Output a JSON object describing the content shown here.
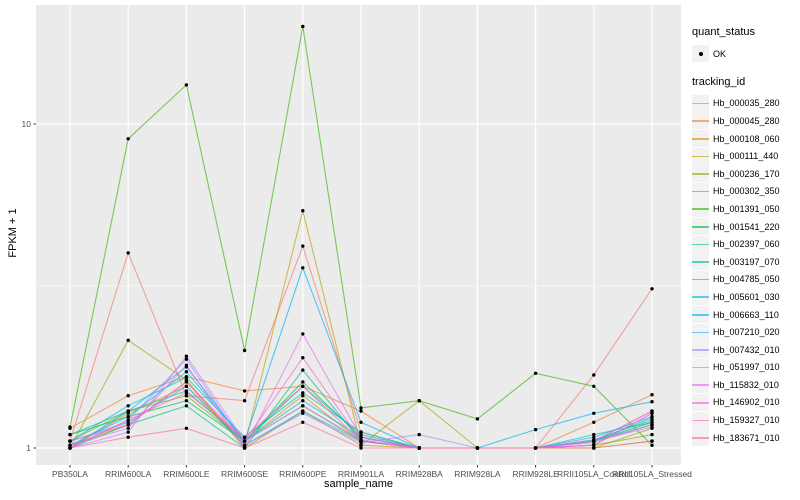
{
  "chart_data": {
    "type": "line",
    "title": "",
    "xlabel": "sample_name",
    "ylabel": "FPKM + 1",
    "yscale": "log10",
    "yticks": [
      "1",
      "10"
    ],
    "ytick_values": [
      1,
      10
    ],
    "yminor_values": [
      3.162
    ],
    "ylim": [
      0.97,
      23.3
    ],
    "grid": true,
    "legend_position": "right",
    "panel_background": "#EBEBEB",
    "gridline_color": "#FFFFFF",
    "point_color": "#000000",
    "categories": [
      "PB350LA",
      "RRIM600LA",
      "RRIM600LE",
      "RRIM600SE",
      "RRIM600PE",
      "RRIM901LA",
      "RRIM928BA",
      "RRIM928LA",
      "RRIM928LE",
      "RRII105LA_Control",
      "RRII105LA_Stressed"
    ],
    "series": [
      {
        "name": "Hb_000035_280",
        "color": "#F8766D",
        "values": [
          1.05,
          4.0,
          1.45,
          1.4,
          4.2,
          1.12,
          1.0,
          1.0,
          1.0,
          1.68,
          3.1
        ]
      },
      {
        "name": "Hb_000045_280",
        "color": "#EA8331",
        "values": [
          1.15,
          1.45,
          1.66,
          1.5,
          1.55,
          1.3,
          1.0,
          1.0,
          1.0,
          1.2,
          1.46
        ]
      },
      {
        "name": "Hb_000108_060",
        "color": "#D89000",
        "values": [
          1.0,
          1.28,
          1.55,
          1.05,
          1.45,
          1.05,
          1.0,
          1.0,
          1.0,
          1.05,
          1.3
        ]
      },
      {
        "name": "Hb_000111_440",
        "color": "#C09B00",
        "values": [
          1.02,
          1.18,
          1.6,
          1.02,
          5.4,
          1.02,
          1.0,
          1.0,
          1.0,
          1.0,
          1.15
        ]
      },
      {
        "name": "Hb_000236_170",
        "color": "#A3A500",
        "values": [
          1.0,
          2.15,
          1.62,
          1.0,
          1.3,
          1.02,
          1.4,
          1.0,
          1.0,
          1.0,
          1.05
        ]
      },
      {
        "name": "Hb_000302_350",
        "color": "#7CAE00",
        "values": [
          1.05,
          1.3,
          1.45,
          1.05,
          1.35,
          1.05,
          1.0,
          1.0,
          1.0,
          1.02,
          1.1
        ]
      },
      {
        "name": "Hb_001391_050",
        "color": "#39B600",
        "values": [
          1.16,
          9.0,
          13.2,
          2.0,
          20.0,
          1.33,
          1.4,
          1.23,
          1.7,
          1.55,
          1.02
        ]
      },
      {
        "name": "Hb_001541_220",
        "color": "#00BB4E",
        "values": [
          1.1,
          1.25,
          1.4,
          1.05,
          1.6,
          1.08,
          1.0,
          1.0,
          1.0,
          1.05,
          1.2
        ]
      },
      {
        "name": "Hb_002397_060",
        "color": "#00C087",
        "values": [
          1.0,
          1.18,
          1.35,
          1.0,
          1.74,
          1.05,
          1.0,
          1.0,
          1.0,
          1.06,
          1.22
        ]
      },
      {
        "name": "Hb_003197_070",
        "color": "#00C0A3",
        "values": [
          1.1,
          1.3,
          1.5,
          1.05,
          1.55,
          1.1,
          1.0,
          1.0,
          1.0,
          1.05,
          1.24
        ]
      },
      {
        "name": "Hb_004785_050",
        "color": "#00BFC4",
        "values": [
          1.05,
          1.35,
          1.65,
          1.08,
          1.48,
          1.12,
          1.0,
          1.0,
          1.0,
          1.1,
          1.2
        ]
      },
      {
        "name": "Hb_005601_030",
        "color": "#00BAE0",
        "values": [
          1.02,
          1.25,
          1.72,
          1.05,
          1.4,
          1.08,
          1.0,
          1.0,
          1.0,
          1.05,
          1.18
        ]
      },
      {
        "name": "Hb_006663_110",
        "color": "#00B0F6",
        "values": [
          1.0,
          1.3,
          1.78,
          1.05,
          3.6,
          1.2,
          1.0,
          1.0,
          1.14,
          1.28,
          1.39
        ]
      },
      {
        "name": "Hb_007210_020",
        "color": "#35A2FF",
        "values": [
          1.05,
          1.2,
          1.55,
          1.02,
          1.3,
          1.05,
          1.0,
          1.0,
          1.0,
          1.08,
          1.25
        ]
      },
      {
        "name": "Hb_007432_010",
        "color": "#9590FF",
        "values": [
          1.0,
          1.22,
          1.88,
          1.02,
          1.28,
          1.04,
          1.1,
          1.0,
          1.0,
          1.05,
          1.16
        ]
      },
      {
        "name": "Hb_051997_010",
        "color": "#C77CFF",
        "values": [
          1.0,
          1.12,
          1.92,
          1.05,
          1.35,
          1.06,
          1.0,
          1.0,
          1.0,
          1.02,
          1.28
        ]
      },
      {
        "name": "Hb_115832_010",
        "color": "#E76BF3",
        "values": [
          1.02,
          1.15,
          1.8,
          1.0,
          2.25,
          1.08,
          1.0,
          1.0,
          1.0,
          1.05,
          1.3
        ]
      },
      {
        "name": "Hb_146902_010",
        "color": "#FA62DB",
        "values": [
          1.05,
          1.18,
          1.6,
          1.05,
          1.9,
          1.05,
          1.0,
          1.0,
          1.0,
          1.02,
          1.28
        ]
      },
      {
        "name": "Hb_159327_010",
        "color": "#FF62BC",
        "values": [
          1.0,
          1.22,
          1.48,
          1.08,
          1.55,
          1.05,
          1.0,
          1.0,
          1.0,
          1.04,
          1.18
        ]
      },
      {
        "name": "Hb_183671_010",
        "color": "#FF6A98",
        "values": [
          1.0,
          1.08,
          1.15,
          1.0,
          1.2,
          1.0,
          1.0,
          1.0,
          1.0,
          1.0,
          1.05
        ]
      }
    ]
  },
  "legend": {
    "quant_status_title": "quant_status",
    "quant_status_items": [
      {
        "label": "OK",
        "symbol": "point"
      }
    ],
    "tracking_title": "tracking_id"
  }
}
